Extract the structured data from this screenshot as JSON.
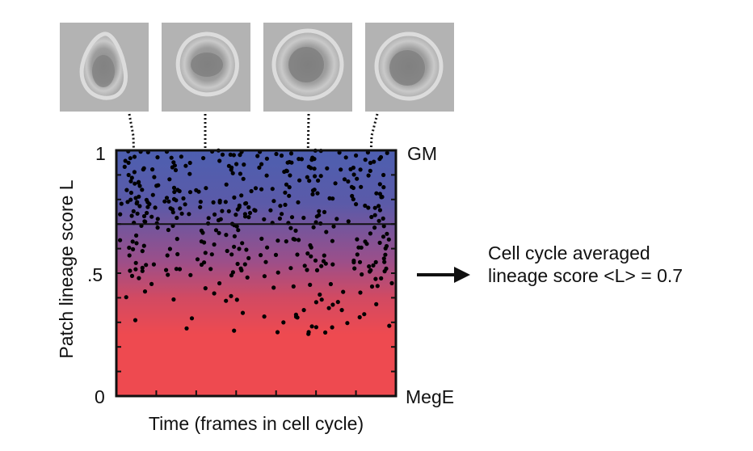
{
  "chart_data": {
    "type": "scatter",
    "xlabel": "Time (frames in cell cycle)",
    "ylabel": "Patch lineage score L",
    "ylim": [
      0,
      1
    ],
    "y_ticks": [
      "1",
      ".5",
      "0"
    ],
    "y_tick_values": [
      1,
      0.5,
      0
    ],
    "right_labels": {
      "top": "GM",
      "bottom": "MegE"
    },
    "threshold_line": 0.7,
    "background_gradient": {
      "top": "#4d5fb0",
      "bottom": "#ee4a50"
    },
    "cell_images_count": 4,
    "annotation_lines": [
      "Cell cycle averaged",
      "lineage score <L> = 0.7"
    ],
    "points_count": 420,
    "points_distribution": "dense in upper band (0.7–1), sparser down to ~0.25"
  },
  "colors": {
    "gm": "#4d5fb0",
    "mege": "#ee4a50",
    "dots": "#000000"
  },
  "icons": {
    "arrow": "right-arrow-icon"
  }
}
